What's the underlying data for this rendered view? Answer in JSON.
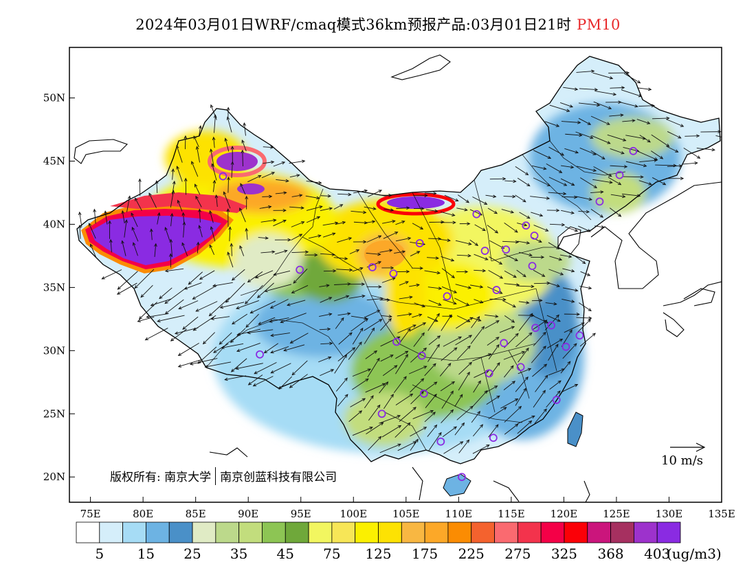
{
  "title": {
    "main": "2024年03月01日WRF/cmaq模式36km预报产品:03月01日21时",
    "variable": "PM10"
  },
  "colors": {
    "title_variable": "#e8282a",
    "frame": "#000000",
    "arrows": "#111111",
    "city_marker": "#8a2be2"
  },
  "axes": {
    "lat_ticks": [
      "20N",
      "25N",
      "30N",
      "35N",
      "40N",
      "45N",
      "50N"
    ],
    "lon_ticks": [
      "75E",
      "80E",
      "85E",
      "90E",
      "95E",
      "100E",
      "105E",
      "110E",
      "115E",
      "120E",
      "125E",
      "130E",
      "135E"
    ],
    "lat_range": [
      18,
      54
    ],
    "lon_range": [
      73,
      135
    ]
  },
  "copyright": {
    "prefix": "版权所有:",
    "org1": "南京大学",
    "org2": "南京创蓝科技有限公司"
  },
  "wind_reference": {
    "label": "10 m/s"
  },
  "colorbar": {
    "unit": "(ug/m3)",
    "colors": [
      "#ffffff",
      "#d5eefa",
      "#a6dcf5",
      "#6db3e3",
      "#4a90c8",
      "#e0ebc5",
      "#bcd98b",
      "#c2dd7d",
      "#8dc554",
      "#6fa83a",
      "#f2f660",
      "#f7e657",
      "#fbf000",
      "#fde203",
      "#f8b742",
      "#fca828",
      "#fb8c02",
      "#f4622e",
      "#fa6a70",
      "#f3334c",
      "#f40047",
      "#fb0007",
      "#cb157c",
      "#a63060",
      "#9d32cc",
      "#8a2be2"
    ],
    "labels": [
      "5",
      "15",
      "25",
      "35",
      "45",
      "75",
      "125",
      "175",
      "225",
      "275",
      "325",
      "368",
      "403"
    ]
  },
  "cities": [
    {
      "lon": 126.6,
      "lat": 45.8
    },
    {
      "lon": 125.3,
      "lat": 43.9
    },
    {
      "lon": 123.4,
      "lat": 41.8
    },
    {
      "lon": 116.4,
      "lat": 39.9
    },
    {
      "lon": 117.2,
      "lat": 39.1
    },
    {
      "lon": 114.5,
      "lat": 38.0
    },
    {
      "lon": 112.5,
      "lat": 37.9
    },
    {
      "lon": 111.7,
      "lat": 40.8
    },
    {
      "lon": 106.3,
      "lat": 38.5
    },
    {
      "lon": 101.8,
      "lat": 36.6
    },
    {
      "lon": 103.8,
      "lat": 36.1
    },
    {
      "lon": 108.9,
      "lat": 34.3
    },
    {
      "lon": 113.6,
      "lat": 34.8
    },
    {
      "lon": 117.0,
      "lat": 36.7
    },
    {
      "lon": 87.6,
      "lat": 43.8
    },
    {
      "lon": 91.1,
      "lat": 29.7
    },
    {
      "lon": 104.1,
      "lat": 30.7
    },
    {
      "lon": 106.5,
      "lat": 29.6
    },
    {
      "lon": 106.7,
      "lat": 26.6
    },
    {
      "lon": 102.7,
      "lat": 25.0
    },
    {
      "lon": 108.3,
      "lat": 22.8
    },
    {
      "lon": 113.3,
      "lat": 23.1
    },
    {
      "lon": 110.3,
      "lat": 20.0
    },
    {
      "lon": 112.9,
      "lat": 28.2
    },
    {
      "lon": 114.3,
      "lat": 30.6
    },
    {
      "lon": 115.9,
      "lat": 28.7
    },
    {
      "lon": 117.3,
      "lat": 31.8
    },
    {
      "lon": 118.8,
      "lat": 32.0
    },
    {
      "lon": 120.2,
      "lat": 30.3
    },
    {
      "lon": 121.5,
      "lat": 31.2
    },
    {
      "lon": 119.3,
      "lat": 26.1
    },
    {
      "lon": 94.9,
      "lat": 36.4
    }
  ]
}
